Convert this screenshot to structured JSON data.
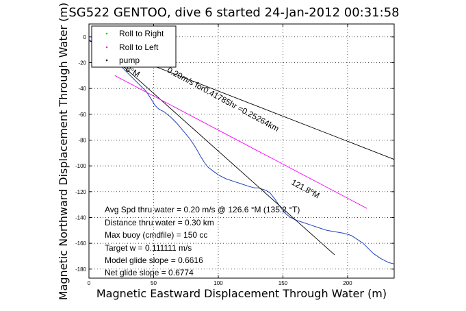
{
  "chart_data": {
    "type": "line",
    "title": "SG522 GENTOO, dive 6 started 24-Jan-2012 00:31:58",
    "xlabel": "Magnetic Eastward Displacement Through Water (m)",
    "ylabel": "Magnetic Northward Displacement Through Water (m)",
    "xlim": [
      0,
      236
    ],
    "ylim": [
      -187,
      10
    ],
    "x_ticks": [
      0,
      50,
      100,
      150,
      200
    ],
    "y_ticks": [
      0,
      -20,
      -40,
      -60,
      -80,
      -100,
      -120,
      -140,
      -160,
      -180
    ],
    "grid": true,
    "legend_position": "top-left",
    "legend": [
      {
        "name": "Roll to Right",
        "marker": "dot",
        "color": "#00cc00"
      },
      {
        "name": "Roll to Left",
        "marker": "dot",
        "color": "#ff00ff"
      },
      {
        "name": "pump",
        "marker": "dot",
        "color": "#000000"
      }
    ],
    "series": [
      {
        "role": "track",
        "color": "#1f3fbf",
        "x": [
          0,
          8,
          16,
          26,
          36,
          44,
          48,
          51,
          54,
          58,
          63,
          68,
          73,
          78,
          82,
          86,
          89,
          92,
          96,
          100,
          106,
          112,
          118,
          124,
          128,
          131,
          134,
          137,
          140,
          144,
          148,
          152,
          156,
          160,
          166,
          172,
          178,
          184,
          190,
          196,
          200,
          203,
          206,
          209,
          212,
          216,
          220,
          226,
          232,
          236
        ],
        "y": [
          -2,
          -8,
          -15,
          -24,
          -34,
          -42,
          -48,
          -53,
          -56,
          -58,
          -62,
          -67,
          -73,
          -79,
          -85,
          -92,
          -97,
          -101,
          -104,
          -107,
          -110,
          -112,
          -114,
          -116,
          -117,
          -117,
          -118,
          -119,
          -121,
          -126,
          -132,
          -137,
          -140,
          -142,
          -144,
          -146,
          -148,
          -150,
          -151,
          -152,
          -153,
          -154,
          -156,
          -158,
          -160,
          -164,
          -168,
          -172,
          -175,
          -176
        ]
      },
      {
        "role": "line",
        "color": "#000000",
        "x": [
          0,
          236
        ],
        "y": [
          -3,
          -95
        ]
      },
      {
        "role": "line",
        "color": "#000000",
        "x": [
          20,
          190
        ],
        "y": [
          -17,
          -169
        ]
      },
      {
        "role": "line",
        "color": "#ff00ff",
        "x": [
          20,
          215
        ],
        "y": [
          -30,
          -133
        ]
      }
    ],
    "annotations": [
      {
        "text": "0.20m/s for0.41785hr =0.25264km",
        "x": 60,
        "y": -27,
        "rotation": 28.5
      },
      {
        "text": "-8°M",
        "x": 26,
        "y": -25,
        "rotation": 28.5
      },
      {
        "text": "121.8°M",
        "x": 156,
        "y": -114,
        "rotation": 28.5
      }
    ],
    "stats": [
      "Avg Spd thru water =  0.20 m/s @ 126.6   °M (135.2 °T)",
      "Distance thru water =  0.30 km",
      "Max buoy (cmdfile) = 150 cc",
      "Target w = 0.111111 m/s",
      "Model glide slope = 0.6616",
      "Net glide slope = 0.6774"
    ]
  }
}
